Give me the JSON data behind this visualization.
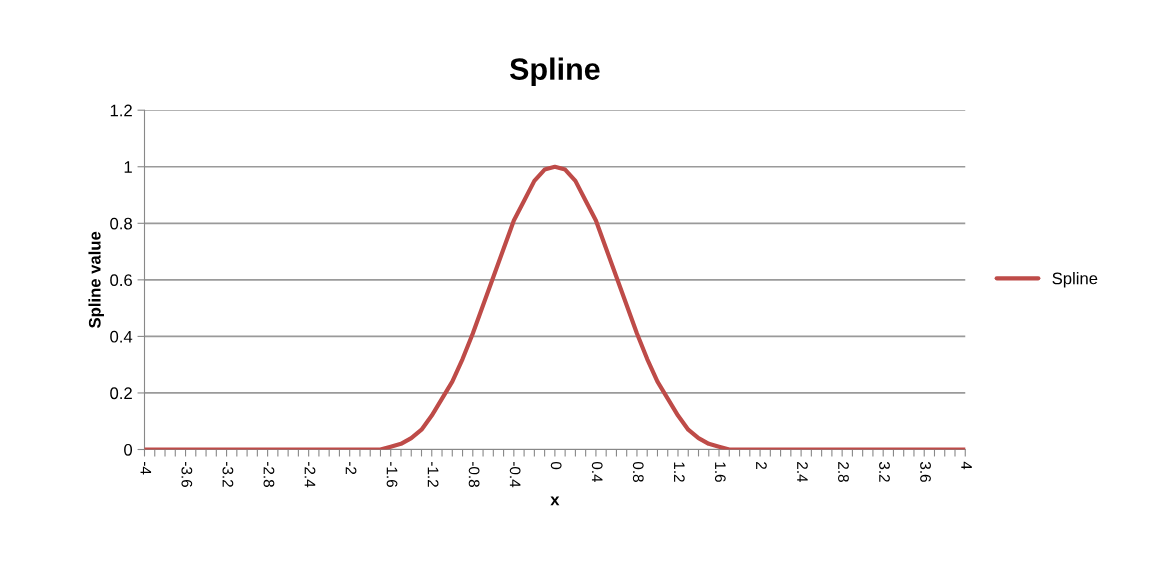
{
  "chart_data": {
    "type": "line",
    "title": "Spline",
    "xlabel": "x",
    "ylabel": "Spline value",
    "series": [
      {
        "name": "Spline",
        "color": "#be4b48",
        "x": [
          -4,
          -2,
          -1.7,
          -1.6,
          -1.5,
          -1.4,
          -1.3,
          -1.2,
          -1.1,
          -1.0,
          -0.9,
          -0.8,
          -0.7,
          -0.6,
          -0.5,
          -0.4,
          -0.3,
          -0.2,
          -0.1,
          0,
          0.1,
          0.2,
          0.3,
          0.4,
          0.5,
          0.6,
          0.7,
          0.8,
          0.9,
          1.0,
          1.1,
          1.2,
          1.3,
          1.4,
          1.5,
          1.6,
          1.7,
          2,
          4
        ],
        "values": [
          0,
          0,
          0,
          0.01,
          0.02,
          0.04,
          0.07,
          0.12,
          0.18,
          0.24,
          0.32,
          0.41,
          0.51,
          0.61,
          0.71,
          0.81,
          0.88,
          0.95,
          0.99,
          1,
          0.99,
          0.95,
          0.88,
          0.81,
          0.71,
          0.61,
          0.51,
          0.41,
          0.32,
          0.24,
          0.18,
          0.12,
          0.07,
          0.04,
          0.02,
          0.01,
          0,
          0,
          0
        ]
      }
    ],
    "xlim": [
      -4,
      4
    ],
    "xticks": [
      -4,
      {
        "value": -3.9,
        "label": null
      },
      {
        "value": -3.8,
        "label": null
      },
      {
        "value": -3.7,
        "label": null
      },
      -3.6,
      {
        "value": -3.5,
        "label": null
      },
      {
        "value": -3.4,
        "label": null
      },
      {
        "value": -3.3,
        "label": null
      },
      -3.2,
      {
        "value": -3.1,
        "label": null
      },
      {
        "value": -3.0,
        "label": null
      },
      {
        "value": -2.9,
        "label": null
      },
      -2.8,
      {
        "value": -2.7,
        "label": null
      },
      {
        "value": -2.6,
        "label": null
      },
      {
        "value": -2.5,
        "label": null
      },
      -2.4,
      {
        "value": -2.3,
        "label": null
      },
      {
        "value": -2.2,
        "label": null
      },
      {
        "value": -2.1,
        "label": null
      },
      -2,
      {
        "value": -1.9,
        "label": null
      },
      {
        "value": -1.8,
        "label": null
      },
      {
        "value": -1.7,
        "label": null
      },
      -1.6,
      {
        "value": -1.5,
        "label": null
      },
      {
        "value": -1.4,
        "label": null
      },
      {
        "value": -1.3,
        "label": null
      },
      -1.2,
      {
        "value": -1.1,
        "label": null
      },
      {
        "value": -1.0,
        "label": null
      },
      {
        "value": -0.9,
        "label": null
      },
      -0.8,
      {
        "value": -0.7,
        "label": null
      },
      {
        "value": -0.6,
        "label": null
      },
      {
        "value": -0.5,
        "label": null
      },
      -0.4,
      {
        "value": -0.3,
        "label": null
      },
      {
        "value": -0.2,
        "label": null
      },
      {
        "value": -0.1,
        "label": null
      },
      0,
      {
        "value": 0.1,
        "label": null
      },
      {
        "value": 0.2,
        "label": null
      },
      {
        "value": 0.3,
        "label": null
      },
      0.4,
      {
        "value": 0.5,
        "label": null
      },
      {
        "value": 0.6,
        "label": null
      },
      {
        "value": 0.7,
        "label": null
      },
      0.8,
      {
        "value": 0.9,
        "label": null
      },
      {
        "value": 1.0,
        "label": null
      },
      {
        "value": 1.1,
        "label": null
      },
      1.2,
      {
        "value": 1.3,
        "label": null
      },
      {
        "value": 1.4,
        "label": null
      },
      {
        "value": 1.5,
        "label": null
      },
      1.6,
      {
        "value": 1.7,
        "label": null
      },
      {
        "value": 1.8,
        "label": null
      },
      {
        "value": 1.9,
        "label": null
      },
      2,
      {
        "value": 2.1,
        "label": null
      },
      {
        "value": 2.2,
        "label": null
      },
      {
        "value": 2.3,
        "label": null
      },
      2.4,
      {
        "value": 2.5,
        "label": null
      },
      {
        "value": 2.6,
        "label": null
      },
      {
        "value": 2.7,
        "label": null
      },
      2.8,
      {
        "value": 2.9,
        "label": null
      },
      {
        "value": 3.0,
        "label": null
      },
      {
        "value": 3.1,
        "label": null
      },
      3.2,
      {
        "value": 3.3,
        "label": null
      },
      {
        "value": 3.4,
        "label": null
      },
      {
        "value": 3.5,
        "label": null
      },
      3.6,
      {
        "value": 3.7,
        "label": null
      },
      {
        "value": 3.8,
        "label": null
      },
      {
        "value": 3.9,
        "label": null
      },
      4
    ],
    "ylim": [
      0,
      1.2
    ],
    "yticks": [
      0,
      0.2,
      0.4,
      0.6,
      0.8,
      1,
      1.2
    ],
    "grid": "y",
    "legend": "right",
    "marker": "none",
    "line_style": "solid"
  }
}
